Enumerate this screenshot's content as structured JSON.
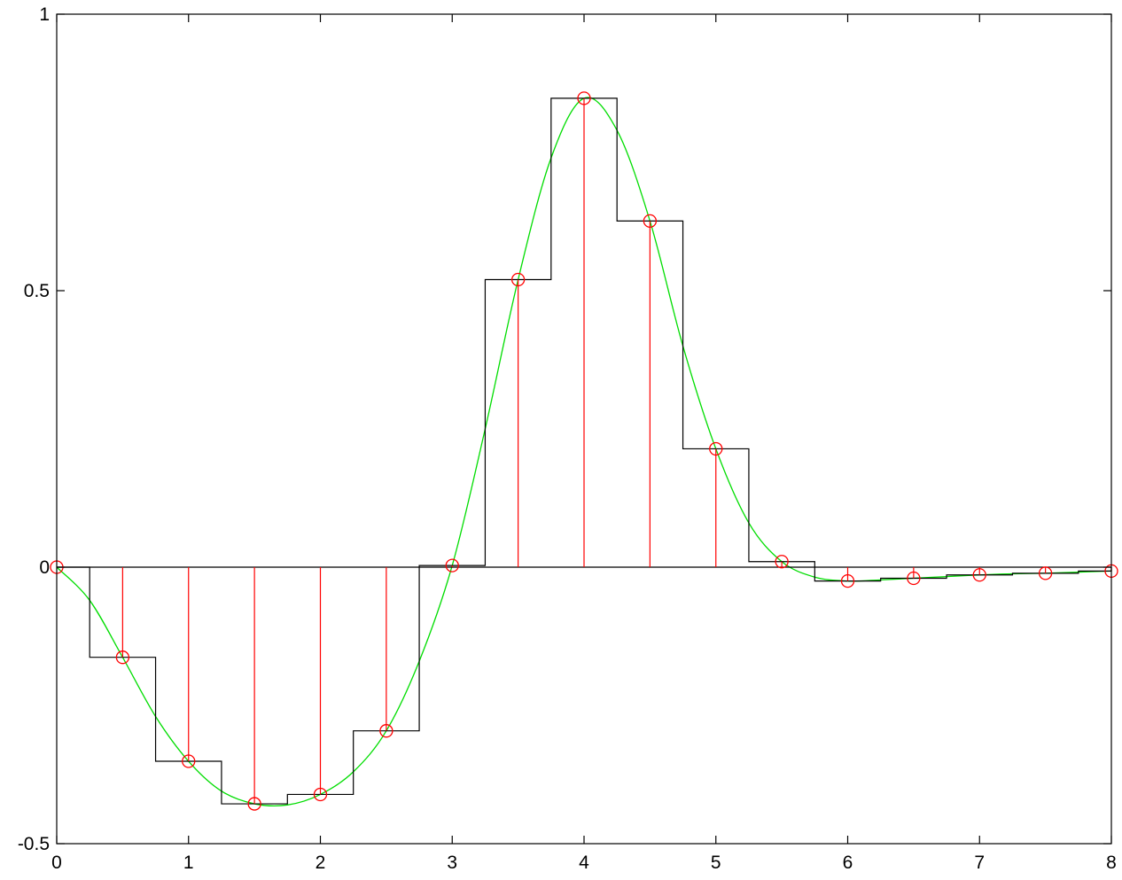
{
  "chart_data": {
    "type": "line",
    "title": "",
    "xlabel": "",
    "ylabel": "",
    "xlim": [
      0,
      8
    ],
    "ylim": [
      -0.5,
      1
    ],
    "xticks": [
      0,
      1,
      2,
      3,
      4,
      5,
      6,
      7,
      8
    ],
    "xtick_labels": [
      "0",
      "1",
      "2",
      "3",
      "4",
      "5",
      "6",
      "7",
      "8"
    ],
    "yticks": [
      -0.5,
      0,
      0.5,
      1
    ],
    "ytick_labels": [
      "-0.5",
      "0",
      "0.5",
      "1"
    ],
    "grid": false,
    "legend": "none",
    "colors": {
      "samples": "#ff0000",
      "staircase": "#000000",
      "curve": "#00dd00",
      "axes": "#000000"
    },
    "series": [
      {
        "kind": "stem",
        "x": [
          0,
          0.5,
          1,
          1.5,
          2,
          2.5,
          3,
          3.5,
          4,
          4.5,
          5,
          5.5,
          6,
          6.5,
          7,
          7.5,
          8
        ],
        "y": [
          0,
          -0.163,
          -0.351,
          -0.428,
          -0.411,
          -0.296,
          0.003,
          0.52,
          0.848,
          0.626,
          0.214,
          0.01,
          -0.025,
          -0.02,
          -0.014,
          -0.011,
          -0.007
        ]
      },
      {
        "kind": "staircase",
        "x": [
          0,
          0.5,
          1,
          1.5,
          2,
          2.5,
          3,
          3.5,
          4,
          4.5,
          5,
          5.5,
          6,
          6.5,
          7,
          7.5,
          8
        ],
        "y": [
          0,
          -0.163,
          -0.351,
          -0.428,
          -0.411,
          -0.296,
          0.003,
          0.52,
          0.848,
          0.626,
          0.214,
          0.01,
          -0.025,
          -0.02,
          -0.014,
          -0.011,
          -0.007
        ]
      },
      {
        "kind": "curve",
        "x": [
          0,
          0.25,
          0.5,
          0.75,
          1,
          1.25,
          1.5,
          1.75,
          2,
          2.25,
          2.5,
          2.75,
          3,
          3.25,
          3.5,
          3.75,
          4,
          4.25,
          4.5,
          4.75,
          5,
          5.25,
          5.5,
          5.75,
          6,
          6.25,
          6.5,
          6.75,
          7,
          7.25,
          7.5,
          7.75,
          8
        ],
        "y": [
          0,
          -0.06,
          -0.163,
          -0.27,
          -0.351,
          -0.405,
          -0.428,
          -0.43,
          -0.411,
          -0.37,
          -0.296,
          -0.17,
          0.003,
          0.25,
          0.52,
          0.74,
          0.848,
          0.79,
          0.626,
          0.4,
          0.214,
          0.08,
          0.01,
          -0.018,
          -0.025,
          -0.023,
          -0.02,
          -0.017,
          -0.014,
          -0.012,
          -0.011,
          -0.009,
          -0.007
        ]
      }
    ]
  }
}
